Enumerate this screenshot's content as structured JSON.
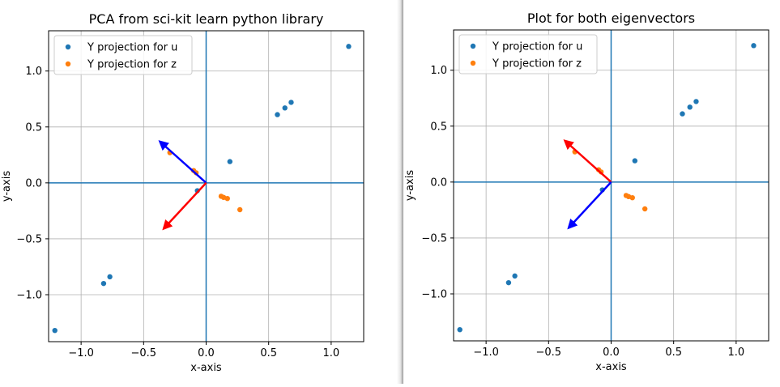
{
  "chart_data": [
    {
      "type": "scatter",
      "title": "PCA from sci-kit learn python library",
      "xlabel": "x-axis",
      "ylabel": "y-axis",
      "xlim": [
        -1.26,
        1.26
      ],
      "ylim": [
        -1.42,
        1.36
      ],
      "xticks": [
        -1.0,
        -0.5,
        0.0,
        0.5,
        1.0
      ],
      "xtick_labels": [
        "−1.0",
        "−0.5",
        "0.0",
        "0.5",
        "1.0"
      ],
      "yticks": [
        -1.0,
        -0.5,
        0.0,
        0.5,
        1.0
      ],
      "ytick_labels": [
        "−1.0",
        "−0.5",
        "0.0",
        "0.5",
        "1.0"
      ],
      "grid": true,
      "legend_position": "upper-left",
      "axis_lines": {
        "x": 0,
        "y": 0,
        "color": "#1f77b4"
      },
      "series": [
        {
          "name": "Y projection for u",
          "color": "#1f77b4",
          "points": [
            [
              -1.21,
              -1.32
            ],
            [
              -0.82,
              -0.9
            ],
            [
              -0.77,
              -0.84
            ],
            [
              -0.07,
              -0.07
            ],
            [
              0.19,
              0.19
            ],
            [
              0.57,
              0.61
            ],
            [
              0.63,
              0.67
            ],
            [
              0.68,
              0.72
            ],
            [
              1.14,
              1.22
            ]
          ]
        },
        {
          "name": "Y projection for z",
          "color": "#ff7f0e",
          "points": [
            [
              -0.29,
              0.27
            ],
            [
              -0.1,
              0.11
            ],
            [
              -0.08,
              0.09
            ],
            [
              0.12,
              -0.12
            ],
            [
              0.14,
              -0.13
            ],
            [
              0.17,
              -0.14
            ],
            [
              0.27,
              -0.24
            ]
          ]
        }
      ],
      "arrows": [
        {
          "color": "#0000ff",
          "from": [
            0,
            0
          ],
          "to": [
            -0.37,
            0.37
          ]
        },
        {
          "color": "#ff0000",
          "from": [
            0,
            0
          ],
          "to": [
            -0.34,
            -0.41
          ]
        }
      ]
    },
    {
      "type": "scatter",
      "title": "Plot for both eigenvectors",
      "xlabel": "x-axis",
      "ylabel": "y-axis",
      "xlim": [
        -1.26,
        1.26
      ],
      "ylim": [
        -1.42,
        1.36
      ],
      "xticks": [
        -1.0,
        -0.5,
        0.0,
        0.5,
        1.0
      ],
      "xtick_labels": [
        "−1.0",
        "−0.5",
        "0.0",
        "0.5",
        "1.0"
      ],
      "yticks": [
        -1.0,
        -0.5,
        0.0,
        0.5,
        1.0
      ],
      "ytick_labels": [
        "−1.0",
        "−0.5",
        "0.0",
        "0.5",
        "1.0"
      ],
      "grid": true,
      "legend_position": "upper-left",
      "axis_lines": {
        "x": 0,
        "y": 0,
        "color": "#1f77b4"
      },
      "series": [
        {
          "name": "Y projection for u",
          "color": "#1f77b4",
          "points": [
            [
              -1.21,
              -1.32
            ],
            [
              -0.82,
              -0.9
            ],
            [
              -0.77,
              -0.84
            ],
            [
              -0.07,
              -0.07
            ],
            [
              0.19,
              0.19
            ],
            [
              0.57,
              0.61
            ],
            [
              0.63,
              0.67
            ],
            [
              0.68,
              0.72
            ],
            [
              1.14,
              1.22
            ]
          ]
        },
        {
          "name": "Y projection for z",
          "color": "#ff7f0e",
          "points": [
            [
              -0.29,
              0.27
            ],
            [
              -0.1,
              0.11
            ],
            [
              -0.08,
              0.09
            ],
            [
              0.12,
              -0.12
            ],
            [
              0.14,
              -0.13
            ],
            [
              0.17,
              -0.14
            ],
            [
              0.27,
              -0.24
            ]
          ]
        }
      ],
      "arrows": [
        {
          "color": "#ff0000",
          "from": [
            0,
            0
          ],
          "to": [
            -0.37,
            0.37
          ]
        },
        {
          "color": "#0000ff",
          "from": [
            0,
            0
          ],
          "to": [
            -0.34,
            -0.41
          ]
        }
      ]
    }
  ]
}
